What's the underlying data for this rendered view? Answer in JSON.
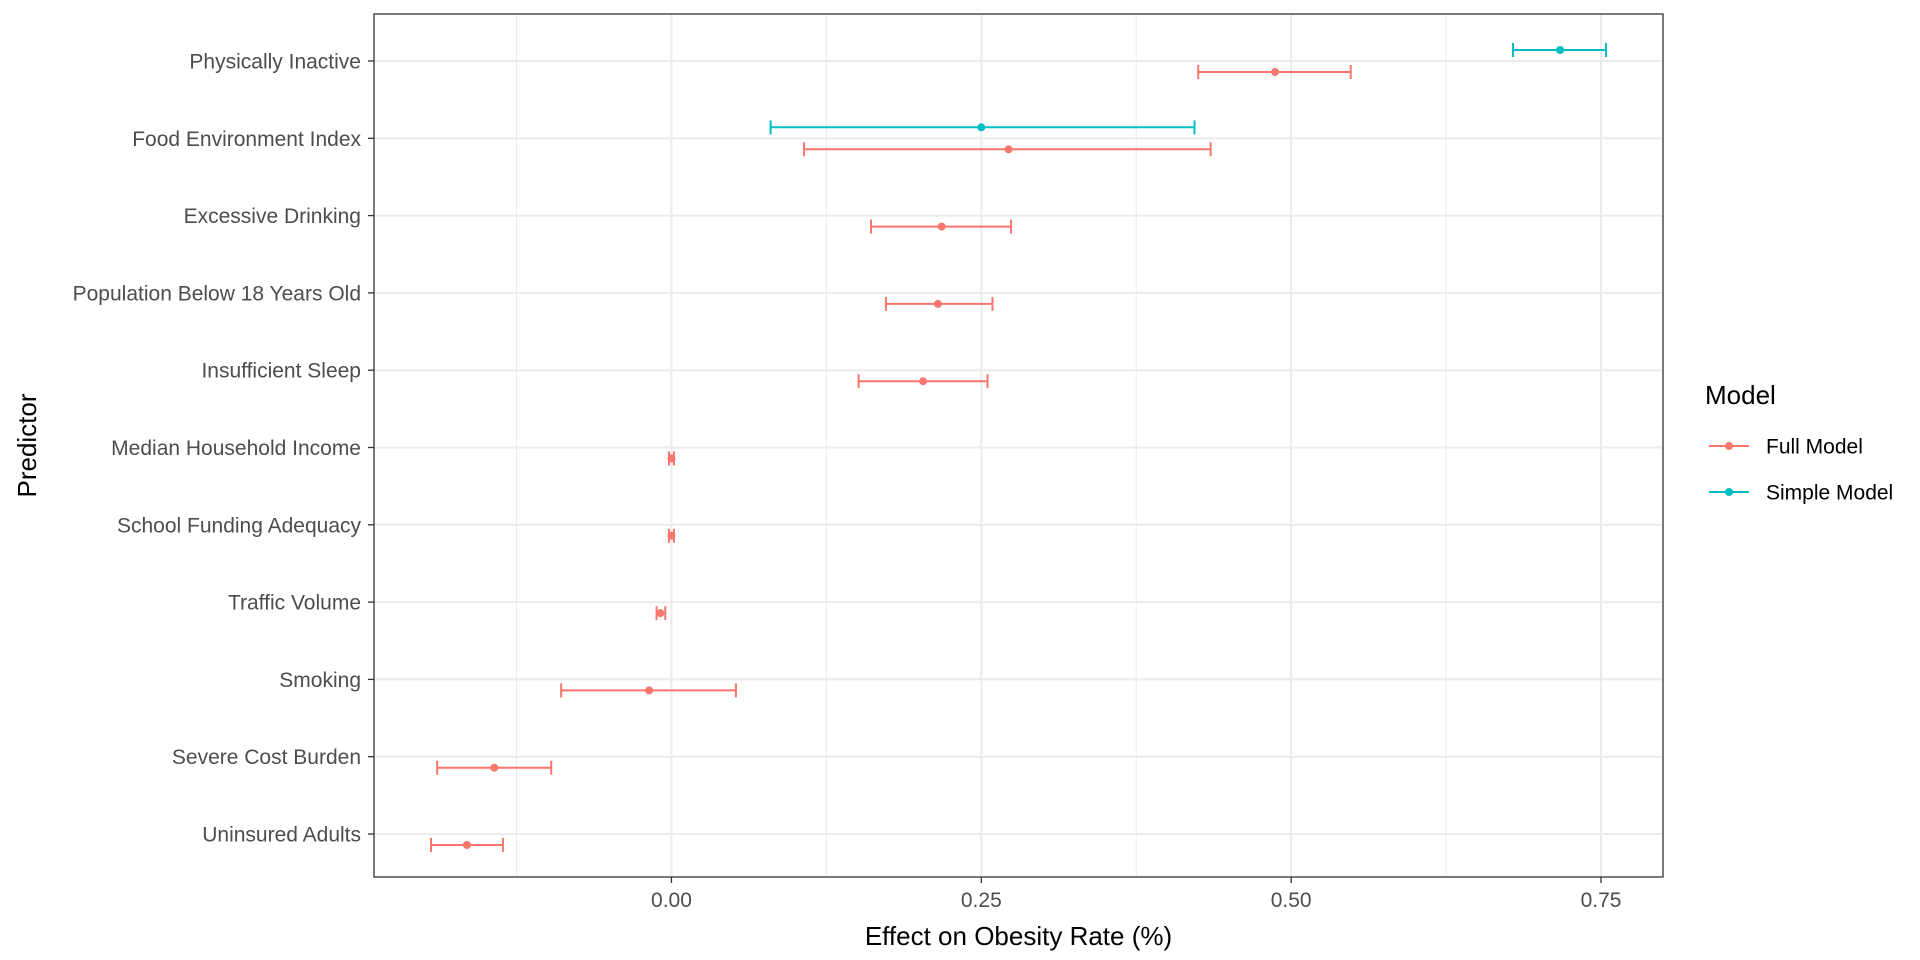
{
  "chart_data": {
    "type": "scatter",
    "subtype": "coefficient-plot-with-error-bars",
    "xlabel": "Effect on Obesity Rate (%)",
    "ylabel": "Predictor",
    "xlim": [
      -0.24,
      0.8
    ],
    "x_ticks": [
      0.0,
      0.25,
      0.5,
      0.75
    ],
    "x_tick_labels": [
      "0.00",
      "0.25",
      "0.50",
      "0.75"
    ],
    "grid": true,
    "categories": [
      "Physically Inactive",
      "Food Environment Index",
      "Excessive Drinking",
      "Population Below 18 Years Old",
      "Insufficient Sleep",
      "Median Household Income",
      "School Funding Adequacy",
      "Traffic Volume",
      "Smoking",
      "Severe Cost Burden",
      "Uninsured Adults"
    ],
    "legend": {
      "title": "Model",
      "position": "right"
    },
    "series": [
      {
        "name": "Full Model",
        "color": "#F8766D",
        "points": [
          {
            "category": "Physically Inactive",
            "estimate": 0.487,
            "lower": 0.425,
            "upper": 0.548
          },
          {
            "category": "Food Environment Index",
            "estimate": 0.272,
            "lower": 0.107,
            "upper": 0.435
          },
          {
            "category": "Excessive Drinking",
            "estimate": 0.218,
            "lower": 0.161,
            "upper": 0.274
          },
          {
            "category": "Population Below 18 Years Old",
            "estimate": 0.215,
            "lower": 0.173,
            "upper": 0.259
          },
          {
            "category": "Insufficient Sleep",
            "estimate": 0.203,
            "lower": 0.151,
            "upper": 0.255
          },
          {
            "category": "Median Household Income",
            "estimate": 0.0,
            "lower": -0.002,
            "upper": 0.002
          },
          {
            "category": "School Funding Adequacy",
            "estimate": 0.0,
            "lower": -0.002,
            "upper": 0.002
          },
          {
            "category": "Traffic Volume",
            "estimate": -0.009,
            "lower": -0.012,
            "upper": -0.005
          },
          {
            "category": "Smoking",
            "estimate": -0.018,
            "lower": -0.089,
            "upper": 0.052
          },
          {
            "category": "Severe Cost Burden",
            "estimate": -0.143,
            "lower": -0.189,
            "upper": -0.097
          },
          {
            "category": "Uninsured Adults",
            "estimate": -0.165,
            "lower": -0.194,
            "upper": -0.136
          }
        ]
      },
      {
        "name": "Simple Model",
        "color": "#00BFC4",
        "points": [
          {
            "category": "Physically Inactive",
            "estimate": 0.717,
            "lower": 0.679,
            "upper": 0.754
          },
          {
            "category": "Food Environment Index",
            "estimate": 0.25,
            "lower": 0.08,
            "upper": 0.422
          }
        ]
      }
    ]
  }
}
